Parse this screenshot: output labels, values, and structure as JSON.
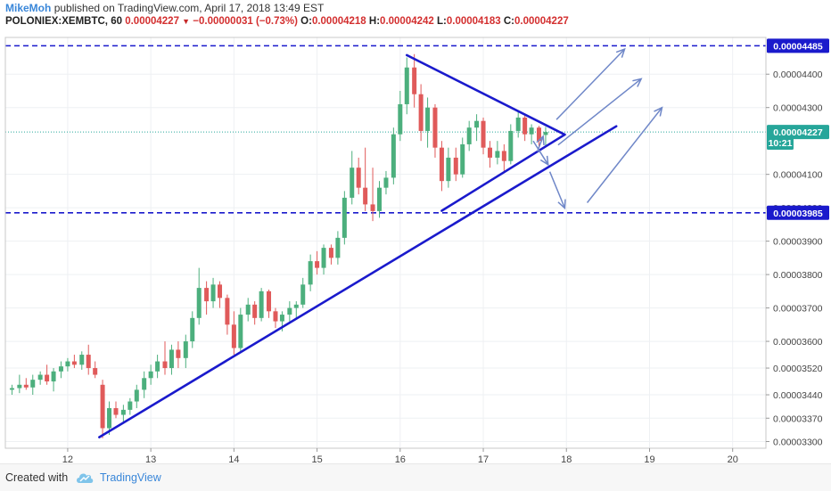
{
  "header": {
    "author": "MikeMoh",
    "published": "published on TradingView.com, April 17, 2018 13:49 EST",
    "symbol": "POLONIEX:XEMBTC, 60",
    "last": "0.00004227",
    "change": "−0.00000031 (−0.73%)",
    "o_label": "O:",
    "o_value": "0.00004218",
    "h_label": "H:",
    "h_value": "0.00004242",
    "l_label": "L:",
    "l_value": "0.00004183",
    "c_label": "C:",
    "c_value": "0.00004227"
  },
  "footer": {
    "created_with": "Created with",
    "brand": "TradingView"
  },
  "chart_data": {
    "type": "candlestick",
    "x_ticks": [
      "12",
      "13",
      "14",
      "15",
      "16",
      "17",
      "18",
      "19",
      "20"
    ],
    "x_tick_values": [
      12,
      13,
      14,
      15,
      16,
      17,
      18,
      19,
      20
    ],
    "xlim": [
      11.25,
      20.4
    ],
    "y_ticks": [
      "0.00004400",
      "0.00004300",
      "0.00004100",
      "0.00004000",
      "0.00003900",
      "0.00003800",
      "0.00003700",
      "0.00003600",
      "0.00003520",
      "0.00003440",
      "0.00003370",
      "0.00003300"
    ],
    "y_tick_values": [
      4.4e-05,
      4.3e-05,
      4.1e-05,
      4e-05,
      3.9e-05,
      3.8e-05,
      3.7e-05,
      3.6e-05,
      3.52e-05,
      3.44e-05,
      3.37e-05,
      3.3e-05
    ],
    "ylim": [
      3.28e-05,
      4.51e-05
    ],
    "price_labels": [
      {
        "text": "0.00004485",
        "value": 4.485e-05,
        "color": "#1a1acc"
      },
      {
        "text": "0.00004227",
        "value": 4.227e-05,
        "color": "#26a69a"
      },
      {
        "text": "10:21",
        "value": 4.195e-05,
        "color": "#26a69a"
      },
      {
        "text": "0.00003985",
        "value": 3.985e-05,
        "color": "#1a1acc"
      }
    ],
    "key_levels": [
      {
        "name": "resistance",
        "value": 4.485e-05,
        "color": "#1a1acc",
        "style": "dashed"
      },
      {
        "name": "last-price",
        "value": 4.227e-05,
        "color": "#26a69a",
        "style": "dotted"
      },
      {
        "name": "support",
        "value": 3.985e-05,
        "color": "#1a1acc",
        "style": "dashed"
      }
    ],
    "trend_lines": [
      {
        "name": "rising-support-trendline",
        "from": [
          12.38,
          3.313e-05
        ],
        "to": [
          18.6,
          4.244e-05
        ]
      },
      {
        "name": "triangle-upper-line",
        "from": [
          16.08,
          4.457e-05
        ],
        "to": [
          17.98,
          4.219e-05
        ]
      },
      {
        "name": "triangle-lower-line",
        "from": [
          16.5,
          3.991e-05
        ],
        "to": [
          17.98,
          4.219e-05
        ]
      }
    ],
    "projection_arrows": [
      {
        "from": [
          17.88,
          4.264e-05
        ],
        "to": [
          18.7,
          4.475e-05
        ]
      },
      {
        "from": [
          17.9,
          4.188e-05
        ],
        "to": [
          18.9,
          4.386e-05
        ]
      },
      {
        "from": [
          18.25,
          4.015e-05
        ],
        "to": [
          19.15,
          4.3e-05
        ]
      },
      {
        "from": [
          17.8,
          4.108e-05
        ],
        "to": [
          17.98,
          3.999e-05
        ]
      },
      {
        "from": [
          17.6,
          4.2e-05
        ],
        "to": [
          17.78,
          4.129e-05
        ]
      },
      {
        "from": [
          17.65,
          4.168e-05
        ],
        "to": [
          17.72,
          4.214e-05
        ]
      }
    ],
    "candles": [
      {
        "x": 11.33,
        "o": 3.455e-05,
        "h": 3.47e-05,
        "l": 3.44e-05,
        "c": 3.46e-05
      },
      {
        "x": 11.42,
        "o": 3.46e-05,
        "h": 3.5e-05,
        "l": 3.445e-05,
        "c": 3.47e-05
      },
      {
        "x": 11.5,
        "o": 3.47e-05,
        "h": 3.49e-05,
        "l": 3.455e-05,
        "c": 3.462e-05
      },
      {
        "x": 11.58,
        "o": 3.462e-05,
        "h": 3.5e-05,
        "l": 3.44e-05,
        "c": 3.485e-05
      },
      {
        "x": 11.67,
        "o": 3.485e-05,
        "h": 3.51e-05,
        "l": 3.47e-05,
        "c": 3.5e-05
      },
      {
        "x": 11.75,
        "o": 3.5e-05,
        "h": 3.53e-05,
        "l": 3.47e-05,
        "c": 3.48e-05
      },
      {
        "x": 11.83,
        "o": 3.48e-05,
        "h": 3.52e-05,
        "l": 3.45e-05,
        "c": 3.51e-05
      },
      {
        "x": 11.92,
        "o": 3.51e-05,
        "h": 3.54e-05,
        "l": 3.49e-05,
        "c": 3.525e-05
      },
      {
        "x": 12.0,
        "o": 3.525e-05,
        "h": 3.55e-05,
        "l": 3.51e-05,
        "c": 3.54e-05
      },
      {
        "x": 12.08,
        "o": 3.54e-05,
        "h": 3.56e-05,
        "l": 3.52e-05,
        "c": 3.53e-05
      },
      {
        "x": 12.17,
        "o": 3.53e-05,
        "h": 3.57e-05,
        "l": 3.515e-05,
        "c": 3.56e-05
      },
      {
        "x": 12.25,
        "o": 3.56e-05,
        "h": 3.59e-05,
        "l": 3.5e-05,
        "c": 3.52e-05
      },
      {
        "x": 12.33,
        "o": 3.52e-05,
        "h": 3.54e-05,
        "l": 3.49e-05,
        "c": 3.5e-05
      },
      {
        "x": 12.42,
        "o": 3.47e-05,
        "h": 3.485e-05,
        "l": 3.31e-05,
        "c": 3.34e-05
      },
      {
        "x": 12.5,
        "o": 3.34e-05,
        "h": 3.42e-05,
        "l": 3.32e-05,
        "c": 3.4e-05
      },
      {
        "x": 12.58,
        "o": 3.4e-05,
        "h": 3.42e-05,
        "l": 3.37e-05,
        "c": 3.38e-05
      },
      {
        "x": 12.67,
        "o": 3.38e-05,
        "h": 3.41e-05,
        "l": 3.36e-05,
        "c": 3.395e-05
      },
      {
        "x": 12.75,
        "o": 3.395e-05,
        "h": 3.43e-05,
        "l": 3.38e-05,
        "c": 3.42e-05
      },
      {
        "x": 12.83,
        "o": 3.42e-05,
        "h": 3.47e-05,
        "l": 3.4e-05,
        "c": 3.455e-05
      },
      {
        "x": 12.92,
        "o": 3.455e-05,
        "h": 3.51e-05,
        "l": 3.43e-05,
        "c": 3.49e-05
      },
      {
        "x": 13.0,
        "o": 3.49e-05,
        "h": 3.53e-05,
        "l": 3.47e-05,
        "c": 3.51e-05
      },
      {
        "x": 13.08,
        "o": 3.51e-05,
        "h": 3.56e-05,
        "l": 3.49e-05,
        "c": 3.54e-05
      },
      {
        "x": 13.17,
        "o": 3.54e-05,
        "h": 3.6e-05,
        "l": 3.5e-05,
        "c": 3.52e-05
      },
      {
        "x": 13.25,
        "o": 3.52e-05,
        "h": 3.59e-05,
        "l": 3.5e-05,
        "c": 3.575e-05
      },
      {
        "x": 13.33,
        "o": 3.575e-05,
        "h": 3.6e-05,
        "l": 3.52e-05,
        "c": 3.55e-05
      },
      {
        "x": 13.42,
        "o": 3.55e-05,
        "h": 3.62e-05,
        "l": 3.52e-05,
        "c": 3.6e-05
      },
      {
        "x": 13.5,
        "o": 3.6e-05,
        "h": 3.69e-05,
        "l": 3.58e-05,
        "c": 3.67e-05
      },
      {
        "x": 13.58,
        "o": 3.67e-05,
        "h": 3.82e-05,
        "l": 3.65e-05,
        "c": 3.76e-05
      },
      {
        "x": 13.67,
        "o": 3.76e-05,
        "h": 3.78e-05,
        "l": 3.68e-05,
        "c": 3.72e-05
      },
      {
        "x": 13.75,
        "o": 3.72e-05,
        "h": 3.79e-05,
        "l": 3.7e-05,
        "c": 3.77e-05
      },
      {
        "x": 13.83,
        "o": 3.77e-05,
        "h": 3.78e-05,
        "l": 3.7e-05,
        "c": 3.73e-05
      },
      {
        "x": 13.92,
        "o": 3.73e-05,
        "h": 3.74e-05,
        "l": 3.62e-05,
        "c": 3.65e-05
      },
      {
        "x": 14.0,
        "o": 3.65e-05,
        "h": 3.69e-05,
        "l": 3.56e-05,
        "c": 3.58e-05
      },
      {
        "x": 14.08,
        "o": 3.58e-05,
        "h": 3.7e-05,
        "l": 3.57e-05,
        "c": 3.68e-05
      },
      {
        "x": 14.17,
        "o": 3.68e-05,
        "h": 3.73e-05,
        "l": 3.66e-05,
        "c": 3.71e-05
      },
      {
        "x": 14.25,
        "o": 3.71e-05,
        "h": 3.72e-05,
        "l": 3.65e-05,
        "c": 3.67e-05
      },
      {
        "x": 14.33,
        "o": 3.67e-05,
        "h": 3.76e-05,
        "l": 3.66e-05,
        "c": 3.75e-05
      },
      {
        "x": 14.42,
        "o": 3.75e-05,
        "h": 3.755e-05,
        "l": 3.67e-05,
        "c": 3.69e-05
      },
      {
        "x": 14.5,
        "o": 3.69e-05,
        "h": 3.7e-05,
        "l": 3.64e-05,
        "c": 3.66e-05
      },
      {
        "x": 14.58,
        "o": 3.66e-05,
        "h": 3.69e-05,
        "l": 3.63e-05,
        "c": 3.68e-05
      },
      {
        "x": 14.67,
        "o": 3.68e-05,
        "h": 3.72e-05,
        "l": 3.66e-05,
        "c": 3.7e-05
      },
      {
        "x": 14.75,
        "o": 3.7e-05,
        "h": 3.72e-05,
        "l": 3.67e-05,
        "c": 3.71e-05
      },
      {
        "x": 14.83,
        "o": 3.71e-05,
        "h": 3.79e-05,
        "l": 3.7e-05,
        "c": 3.77e-05
      },
      {
        "x": 14.92,
        "o": 3.77e-05,
        "h": 3.86e-05,
        "l": 3.75e-05,
        "c": 3.84e-05
      },
      {
        "x": 15.0,
        "o": 3.84e-05,
        "h": 3.87e-05,
        "l": 3.8e-05,
        "c": 3.82e-05
      },
      {
        "x": 15.08,
        "o": 3.82e-05,
        "h": 3.89e-05,
        "l": 3.8e-05,
        "c": 3.88e-05
      },
      {
        "x": 15.17,
        "o": 3.88e-05,
        "h": 3.89e-05,
        "l": 3.83e-05,
        "c": 3.85e-05
      },
      {
        "x": 15.25,
        "o": 3.85e-05,
        "h": 3.93e-05,
        "l": 3.83e-05,
        "c": 3.91e-05
      },
      {
        "x": 15.33,
        "o": 3.91e-05,
        "h": 4.05e-05,
        "l": 3.89e-05,
        "c": 4.03e-05
      },
      {
        "x": 15.42,
        "o": 4.03e-05,
        "h": 4.17e-05,
        "l": 4.01e-05,
        "c": 4.12e-05
      },
      {
        "x": 15.5,
        "o": 4.12e-05,
        "h": 4.15e-05,
        "l": 4.04e-05,
        "c": 4.06e-05
      },
      {
        "x": 15.58,
        "o": 4.06e-05,
        "h": 4.18e-05,
        "l": 3.99e-05,
        "c": 4.01e-05
      },
      {
        "x": 15.67,
        "o": 4.01e-05,
        "h": 4.12e-05,
        "l": 3.96e-05,
        "c": 3.99e-05
      },
      {
        "x": 15.75,
        "o": 3.99e-05,
        "h": 4.08e-05,
        "l": 3.97e-05,
        "c": 4.06e-05
      },
      {
        "x": 15.83,
        "o": 4.06e-05,
        "h": 4.11e-05,
        "l": 4.04e-05,
        "c": 4.09e-05
      },
      {
        "x": 15.92,
        "o": 4.09e-05,
        "h": 4.24e-05,
        "l": 4.07e-05,
        "c": 4.22e-05
      },
      {
        "x": 16.0,
        "o": 4.22e-05,
        "h": 4.35e-05,
        "l": 4.2e-05,
        "c": 4.31e-05
      },
      {
        "x": 16.08,
        "o": 4.31e-05,
        "h": 4.45e-05,
        "l": 4.28e-05,
        "c": 4.42e-05
      },
      {
        "x": 16.17,
        "o": 4.42e-05,
        "h": 4.46e-05,
        "l": 4.3e-05,
        "c": 4.34e-05
      },
      {
        "x": 16.25,
        "o": 4.34e-05,
        "h": 4.37e-05,
        "l": 4.2e-05,
        "c": 4.23e-05
      },
      {
        "x": 16.33,
        "o": 4.23e-05,
        "h": 4.33e-05,
        "l": 4.18e-05,
        "c": 4.3e-05
      },
      {
        "x": 16.42,
        "o": 4.3e-05,
        "h": 4.31e-05,
        "l": 4.15e-05,
        "c": 4.18e-05
      },
      {
        "x": 16.5,
        "o": 4.18e-05,
        "h": 4.2e-05,
        "l": 4.05e-05,
        "c": 4.08e-05
      },
      {
        "x": 16.58,
        "o": 4.08e-05,
        "h": 4.18e-05,
        "l": 4.06e-05,
        "c": 4.15e-05
      },
      {
        "x": 16.67,
        "o": 4.15e-05,
        "h": 4.18e-05,
        "l": 4.08e-05,
        "c": 4.1e-05
      },
      {
        "x": 16.75,
        "o": 4.1e-05,
        "h": 4.21e-05,
        "l": 4.09e-05,
        "c": 4.19e-05
      },
      {
        "x": 16.83,
        "o": 4.19e-05,
        "h": 4.26e-05,
        "l": 4.17e-05,
        "c": 4.24e-05
      },
      {
        "x": 16.92,
        "o": 4.24e-05,
        "h": 4.28e-05,
        "l": 4.2e-05,
        "c": 4.26e-05
      },
      {
        "x": 17.0,
        "o": 4.26e-05,
        "h": 4.27e-05,
        "l": 4.16e-05,
        "c": 4.18e-05
      },
      {
        "x": 17.08,
        "o": 4.18e-05,
        "h": 4.2e-05,
        "l": 4.12e-05,
        "c": 4.15e-05
      },
      {
        "x": 17.17,
        "o": 4.15e-05,
        "h": 4.2e-05,
        "l": 4.13e-05,
        "c": 4.17e-05
      },
      {
        "x": 17.25,
        "o": 4.17e-05,
        "h": 4.19e-05,
        "l": 4.11e-05,
        "c": 4.14e-05
      },
      {
        "x": 17.33,
        "o": 4.14e-05,
        "h": 4.25e-05,
        "l": 4.13e-05,
        "c": 4.23e-05
      },
      {
        "x": 17.42,
        "o": 4.23e-05,
        "h": 4.29e-05,
        "l": 4.21e-05,
        "c": 4.27e-05
      },
      {
        "x": 17.5,
        "o": 4.27e-05,
        "h": 4.28e-05,
        "l": 4.2e-05,
        "c": 4.22e-05
      },
      {
        "x": 17.58,
        "o": 4.22e-05,
        "h": 4.25e-05,
        "l": 4.19e-05,
        "c": 4.24e-05
      },
      {
        "x": 17.67,
        "o": 4.24e-05,
        "h": 4.245e-05,
        "l": 4.18e-05,
        "c": 4.2e-05
      },
      {
        "x": 17.75,
        "o": 4.218e-05,
        "h": 4.242e-05,
        "l": 4.183e-05,
        "c": 4.227e-05
      }
    ]
  }
}
